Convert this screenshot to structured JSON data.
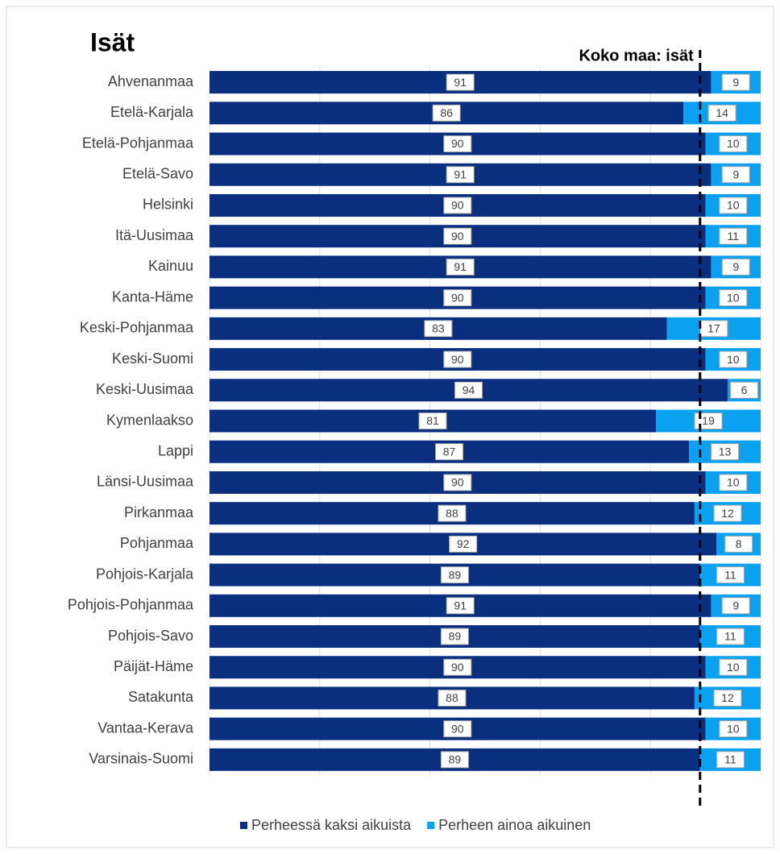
{
  "chart_data": {
    "type": "stacked_barh",
    "title": "Isät",
    "categories": [
      "Ahvenanmaa",
      "Etelä-Karjala",
      "Etelä-Pohjanmaa",
      "Etelä-Savo",
      "Helsinki",
      "Itä-Uusimaa",
      "Kainuu",
      "Kanta-Häme",
      "Keski-Pohjanmaa",
      "Keski-Suomi",
      "Keski-Uusimaa",
      "Kymenlaakso",
      "Lappi",
      "Länsi-Uusimaa",
      "Pirkanmaa",
      "Pohjanmaa",
      "Pohjois-Karjala",
      "Pohjois-Pohjanmaa",
      "Pohjois-Savo",
      "Päijät-Häme",
      "Satakunta",
      "Vantaa-Kerava",
      "Varsinais-Suomi"
    ],
    "series": [
      {
        "name": "Perheessä kaksi aikuista",
        "color": "#0a2f7e",
        "values": [
          91,
          86,
          90,
          91,
          90,
          90,
          91,
          90,
          83,
          90,
          94,
          81,
          87,
          90,
          88,
          92,
          89,
          91,
          89,
          90,
          88,
          90,
          89
        ]
      },
      {
        "name": "Perheen ainoa aikuinen",
        "color": "#0aa2f0",
        "values": [
          9,
          14,
          10,
          9,
          10,
          11,
          9,
          10,
          17,
          10,
          6,
          19,
          13,
          10,
          12,
          8,
          11,
          9,
          11,
          10,
          12,
          10,
          11
        ]
      }
    ],
    "xlim": [
      0,
      100
    ],
    "xticks": [
      0,
      20,
      40,
      60,
      80,
      100
    ],
    "grid": true,
    "legend": "bottom",
    "reference_line": {
      "label": "Koko maa: isät",
      "value": 89
    }
  }
}
